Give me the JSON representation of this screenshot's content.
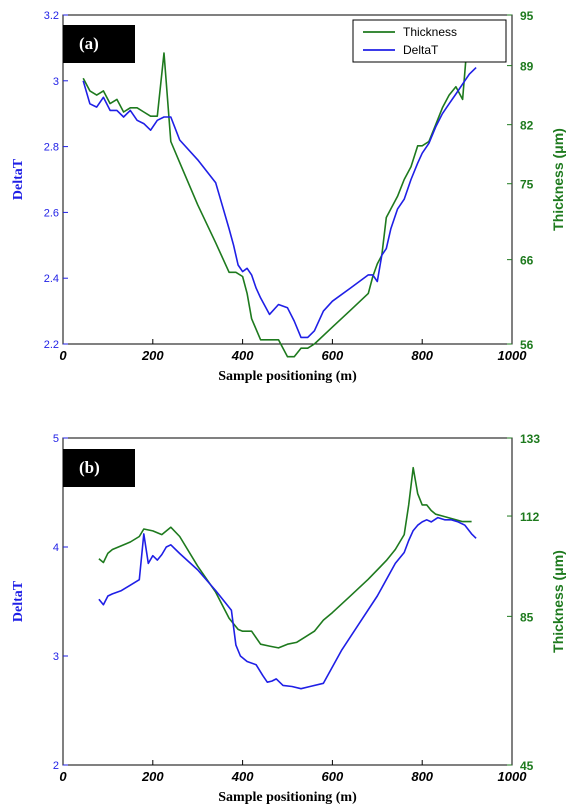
{
  "colors": {
    "deltat": "#1f1fe6",
    "thickness": "#1e7a1e",
    "axis": "#000000"
  },
  "chart_data": [
    {
      "type": "line",
      "panel_label": "(a)",
      "xlabel": "Sample positioning (m)",
      "ylabel_left": "DeltaT",
      "ylabel_right": "Thickness (μm)",
      "xlim": [
        0,
        1000
      ],
      "ylim_left": [
        2.2,
        3.2
      ],
      "ylim_right": [
        56,
        95
      ],
      "x_ticks": [
        "0",
        "200",
        "400",
        "600",
        "800",
        "1000"
      ],
      "y_ticks_left": [
        "2.2",
        "2.4",
        "2.6",
        "2.8",
        "3",
        "3.2"
      ],
      "y_ticks_right": [
        "56",
        "66",
        "75",
        "82",
        "89",
        "95"
      ],
      "legend": {
        "position": "top-right",
        "entries": [
          "Thickness",
          "DeltaT"
        ]
      },
      "series": [
        {
          "name": "Thickness",
          "axis": "right",
          "color_key": "thickness",
          "x": [
            45,
            60,
            75,
            90,
            105,
            120,
            135,
            150,
            165,
            180,
            195,
            210,
            225,
            240,
            260,
            300,
            340,
            370,
            385,
            400,
            410,
            420,
            440,
            460,
            480,
            500,
            515,
            530,
            545,
            560,
            600,
            640,
            680,
            690,
            700,
            710,
            720,
            730,
            745,
            760,
            775,
            790,
            800,
            815,
            830,
            845,
            860,
            875,
            890,
            900,
            910,
            925
          ],
          "y": [
            87.5,
            86,
            85.5,
            86,
            84.5,
            85,
            83.5,
            84,
            84,
            83.5,
            83,
            83,
            90.5,
            80,
            77.5,
            72.5,
            68,
            64.5,
            64.5,
            64,
            62,
            59,
            56.5,
            56.5,
            56.5,
            54.5,
            54.5,
            55.5,
            55.5,
            56,
            58,
            60,
            62,
            64,
            65.5,
            66.5,
            71,
            72,
            73.5,
            75.5,
            77,
            79.5,
            79.5,
            80,
            82,
            84,
            85.5,
            86.5,
            85,
            91.5,
            91.5,
            91
          ]
        },
        {
          "name": "DeltaT",
          "axis": "left",
          "color_key": "deltat",
          "x": [
            45,
            60,
            75,
            90,
            105,
            120,
            135,
            150,
            165,
            180,
            195,
            210,
            225,
            240,
            260,
            300,
            340,
            355,
            370,
            380,
            390,
            400,
            410,
            420,
            430,
            440,
            460,
            480,
            500,
            515,
            530,
            545,
            560,
            580,
            600,
            640,
            680,
            690,
            700,
            710,
            720,
            730,
            745,
            760,
            775,
            790,
            800,
            815,
            830,
            845,
            860,
            875,
            890,
            905,
            920
          ],
          "y": [
            3.0,
            2.93,
            2.92,
            2.95,
            2.91,
            2.91,
            2.89,
            2.91,
            2.88,
            2.87,
            2.85,
            2.88,
            2.89,
            2.89,
            2.82,
            2.76,
            2.69,
            2.62,
            2.55,
            2.5,
            2.44,
            2.42,
            2.43,
            2.41,
            2.37,
            2.34,
            2.29,
            2.32,
            2.31,
            2.27,
            2.22,
            2.22,
            2.24,
            2.3,
            2.33,
            2.37,
            2.41,
            2.41,
            2.39,
            2.47,
            2.49,
            2.55,
            2.61,
            2.64,
            2.7,
            2.75,
            2.78,
            2.81,
            2.86,
            2.9,
            2.93,
            2.96,
            2.99,
            3.02,
            3.04
          ]
        }
      ]
    },
    {
      "type": "line",
      "panel_label": "(b)",
      "xlabel": "Sample positioning (m)",
      "ylabel_left": "DeltaT",
      "ylabel_right": "Thickness (μm)",
      "xlim": [
        0,
        1000
      ],
      "ylim_left": [
        2,
        5
      ],
      "ylim_right": [
        45,
        133
      ],
      "x_ticks": [
        "0",
        "200",
        "400",
        "600",
        "800",
        "1000"
      ],
      "y_ticks_left": [
        "2",
        "3",
        "4",
        "5"
      ],
      "y_ticks_right": [
        "45",
        "85",
        "112",
        "133"
      ],
      "series": [
        {
          "name": "Thickness",
          "axis": "right",
          "color_key": "thickness",
          "x": [
            80,
            90,
            100,
            110,
            130,
            150,
            170,
            180,
            200,
            220,
            240,
            260,
            300,
            340,
            370,
            390,
            400,
            420,
            440,
            460,
            480,
            500,
            520,
            540,
            560,
            580,
            600,
            640,
            680,
            720,
            740,
            760,
            770,
            780,
            790,
            800,
            810,
            820,
            830,
            845,
            860,
            875,
            890,
            910
          ],
          "y": [
            100.5,
            99.5,
            102,
            103,
            104,
            105,
            106.5,
            108.5,
            108,
            107,
            109,
            106.5,
            98.5,
            91.5,
            84.5,
            81.5,
            81,
            81,
            77.5,
            77,
            76.5,
            77.5,
            78,
            79.5,
            81,
            84,
            86,
            90.5,
            95,
            100,
            103,
            107,
            115,
            125,
            118,
            115,
            115,
            113.5,
            112.5,
            112,
            111.5,
            111,
            110.5,
            110.5
          ]
        },
        {
          "name": "DeltaT",
          "axis": "left",
          "color_key": "deltat",
          "x": [
            80,
            90,
            100,
            110,
            130,
            150,
            170,
            180,
            190,
            200,
            210,
            220,
            230,
            240,
            260,
            300,
            340,
            375,
            385,
            395,
            410,
            430,
            445,
            455,
            465,
            475,
            490,
            510,
            530,
            550,
            580,
            620,
            660,
            700,
            740,
            760,
            770,
            780,
            790,
            800,
            810,
            820,
            835,
            850,
            865,
            880,
            895,
            910,
            920
          ],
          "y": [
            3.52,
            3.47,
            3.55,
            3.57,
            3.6,
            3.65,
            3.7,
            4.12,
            3.85,
            3.92,
            3.88,
            3.93,
            4.0,
            4.02,
            3.94,
            3.79,
            3.6,
            3.42,
            3.1,
            3.0,
            2.95,
            2.92,
            2.82,
            2.76,
            2.77,
            2.79,
            2.73,
            2.72,
            2.7,
            2.72,
            2.75,
            3.05,
            3.3,
            3.55,
            3.85,
            3.95,
            4.06,
            4.15,
            4.2,
            4.23,
            4.25,
            4.23,
            4.27,
            4.25,
            4.25,
            4.23,
            4.2,
            4.12,
            4.08
          ]
        }
      ]
    }
  ]
}
